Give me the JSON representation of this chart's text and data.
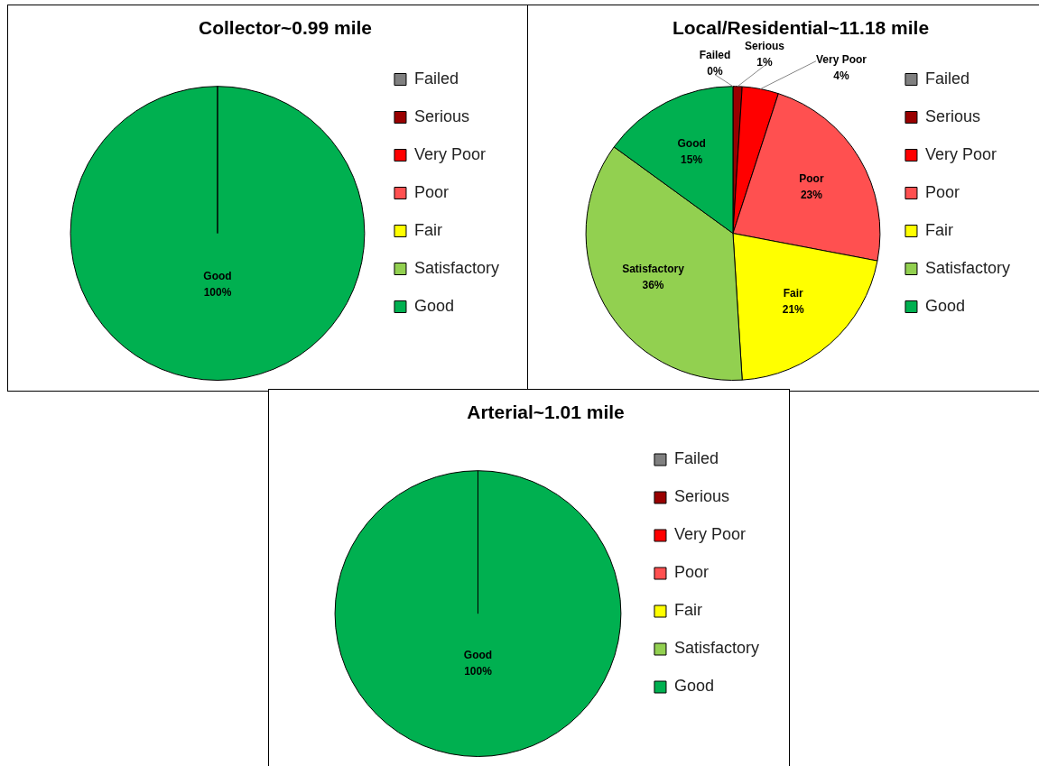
{
  "chart_data": [
    {
      "type": "pie",
      "title": "Collector~0.99 mile",
      "categories": [
        "Failed",
        "Serious",
        "Very Poor",
        "Poor",
        "Fair",
        "Satisfactory",
        "Good"
      ],
      "values": [
        0,
        0,
        0,
        0,
        0,
        0,
        100
      ],
      "colors": [
        "#808080",
        "#990000",
        "#ff0000",
        "#ff5050",
        "#ffff00",
        "#92d050",
        "#00b050"
      ],
      "value_labels": [
        null,
        null,
        null,
        null,
        null,
        null,
        "100%"
      ],
      "legend": "right"
    },
    {
      "type": "pie",
      "title": "Local/Residential~11.18 mile",
      "categories": [
        "Failed",
        "Serious",
        "Very Poor",
        "Poor",
        "Fair",
        "Satisfactory",
        "Good"
      ],
      "values": [
        0,
        1,
        4,
        23,
        21,
        36,
        15
      ],
      "colors": [
        "#808080",
        "#990000",
        "#ff0000",
        "#ff5050",
        "#ffff00",
        "#92d050",
        "#00b050"
      ],
      "value_labels": [
        "0%",
        "1%",
        "4%",
        "23%",
        "21%",
        "36%",
        "15%"
      ],
      "legend": "right"
    },
    {
      "type": "pie",
      "title": "Arterial~1.01 mile",
      "categories": [
        "Failed",
        "Serious",
        "Very Poor",
        "Poor",
        "Fair",
        "Satisfactory",
        "Good"
      ],
      "values": [
        0,
        0,
        0,
        0,
        0,
        0,
        100
      ],
      "colors": [
        "#808080",
        "#990000",
        "#ff0000",
        "#ff5050",
        "#ffff00",
        "#92d050",
        "#00b050"
      ],
      "value_labels": [
        null,
        null,
        null,
        null,
        null,
        null,
        "100%"
      ],
      "legend": "right"
    }
  ]
}
